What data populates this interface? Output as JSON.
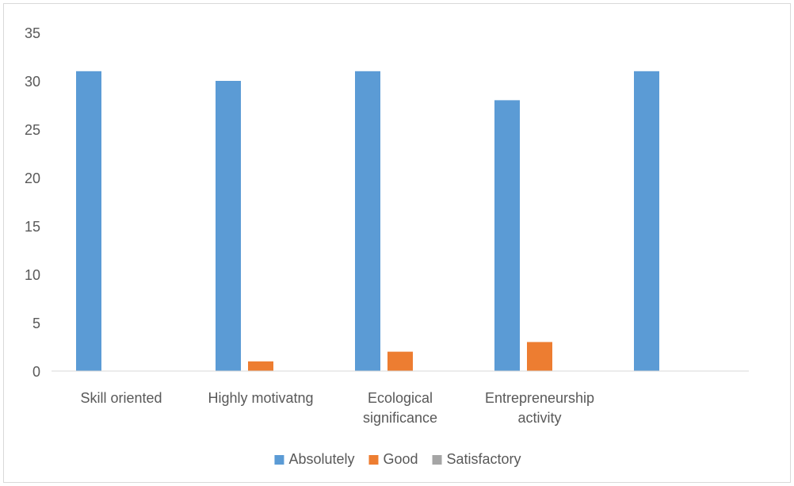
{
  "chart_data": {
    "type": "bar",
    "title": "",
    "xlabel": "",
    "ylabel": "",
    "categories": [
      [
        "Skill oriented"
      ],
      [
        "Highly motivatng"
      ],
      [
        "Ecological",
        "significance"
      ],
      [
        "Entrepreneurship",
        "activity"
      ],
      [
        ""
      ]
    ],
    "series": [
      {
        "name": "Absolutely",
        "color": "#5b9bd5",
        "values": [
          31,
          30,
          31,
          28,
          31
        ]
      },
      {
        "name": "Good",
        "color": "#ed7d31",
        "values": [
          0,
          1,
          2,
          3,
          0
        ]
      },
      {
        "name": "Satisfactory",
        "color": "#a5a5a5",
        "values": [
          0,
          0,
          0,
          0,
          0
        ]
      }
    ],
    "ylim": [
      0,
      35
    ],
    "yticks": [
      0,
      5,
      10,
      15,
      20,
      25,
      30,
      35
    ],
    "grid": false,
    "legend": "bottom",
    "axis_color": "#d9d9d9"
  }
}
